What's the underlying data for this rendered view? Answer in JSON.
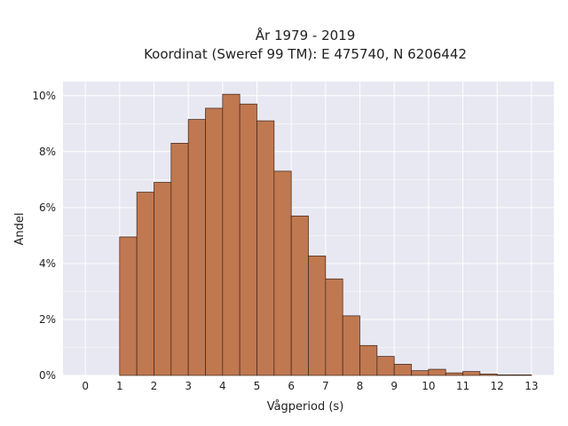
{
  "chart_data": {
    "type": "bar",
    "title": "År 1979 - 2019",
    "subtitle": "Koordinat (Sweref 99 TM): E 475740, N 6206442",
    "xlabel": "Vågperiod (s)",
    "ylabel": "Andel",
    "bin_width": 0.5,
    "bin_starts": [
      0,
      0.5,
      1,
      1.5,
      2,
      2.5,
      3,
      3.5,
      4,
      4.5,
      5,
      5.5,
      6,
      6.5,
      7,
      7.5,
      8,
      8.5,
      9,
      9.5,
      10,
      10.5,
      11,
      11.5,
      12,
      12.5
    ],
    "values": [
      0.0,
      0.0,
      4.95,
      6.55,
      6.9,
      8.3,
      9.15,
      9.55,
      10.05,
      9.7,
      9.1,
      7.3,
      5.7,
      4.27,
      3.45,
      2.13,
      1.07,
      0.68,
      0.4,
      0.17,
      0.22,
      0.09,
      0.14,
      0.05,
      0.02,
      0.02
    ],
    "x_ticks": [
      "0",
      "1",
      "2",
      "3",
      "4",
      "5",
      "6",
      "7",
      "8",
      "9",
      "10",
      "11",
      "12",
      "13"
    ],
    "y_ticks": [
      "0%",
      "2%",
      "4%",
      "6%",
      "8%",
      "10%"
    ],
    "y_tick_values": [
      0,
      2,
      4,
      6,
      8,
      10
    ],
    "xlim": [
      -0.65,
      13.65
    ],
    "ylim": [
      0,
      10.5
    ],
    "grid": true,
    "colors": {
      "bar": "#c07850",
      "bar_edge": "#3a2418",
      "plot_bg": "#e8e8f2",
      "grid": "#ffffff"
    }
  }
}
